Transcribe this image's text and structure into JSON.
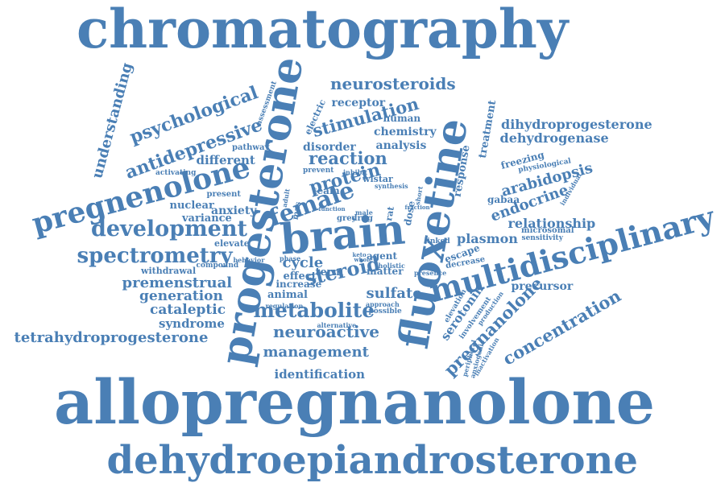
{
  "cloud": {
    "color": "#4a7fb5",
    "words": [
      "chromatography",
      "allopregnanolone",
      "dehydroepiandrosterone",
      "progesterone",
      "fluoxetine",
      "brain",
      "multidisciplinary",
      "pregnenolone",
      "spectrometry",
      "development",
      "female",
      "metabolite",
      "neurosteroids",
      "tetrahydroprogesterone",
      "neuroactive",
      "management",
      "identification",
      "premenstrual",
      "generation",
      "cataleptic",
      "syndrome",
      "psychological",
      "antidepressive",
      "understanding",
      "stimulation",
      "reaction",
      "protein",
      "steroid",
      "cycle",
      "sulfate",
      "dihydroprogesterone",
      "dehydrogenase",
      "arabidopsis",
      "endocrine",
      "relationship",
      "plasmon",
      "concentration",
      "pregnanolone",
      "serotonin",
      "precursor",
      "response",
      "treatment",
      "chemistry",
      "analysis",
      "receptor",
      "human",
      "disorder",
      "different",
      "anxiety",
      "variance",
      "nuclear",
      "elevate",
      "withdrawal",
      "compound",
      "effect",
      "term",
      "animal",
      "increase",
      "agent",
      "matter",
      "escape",
      "freezing",
      "gabaa",
      "microsomal",
      "sensitivity",
      "physiological",
      "assessment",
      "electric",
      "pathway",
      "activating",
      "present",
      "prevent",
      "team",
      "wistar",
      "synthesis",
      "dose",
      "rat",
      "mas",
      "drug",
      "male",
      "linked",
      "decrease",
      "presence",
      "elevation",
      "involvement",
      "production",
      "peripheral",
      "anxiogenic",
      "inactivation",
      "individual",
      "regulation",
      "approach",
      "possible",
      "alternative",
      "holistic",
      "behavior",
      "phase",
      "short",
      "adult",
      "inhibit",
      "fraction",
      "whole",
      "keto",
      "function",
      "grey"
    ]
  }
}
